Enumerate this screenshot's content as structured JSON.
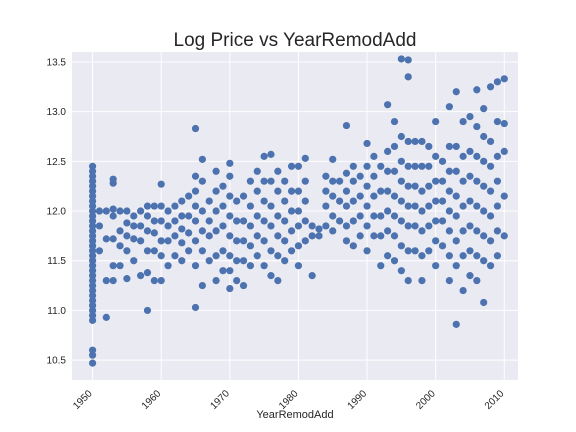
{
  "chart_data": {
    "type": "scatter",
    "title": "Log Price vs YearRemodAdd",
    "xlabel": "YearRemodAdd",
    "ylabel": "",
    "xlim": [
      1947,
      2012
    ],
    "ylim": [
      10.3,
      13.6
    ],
    "xticks": [
      1950,
      1960,
      1970,
      1980,
      1990,
      2000,
      2010
    ],
    "yticks": [
      10.5,
      11.0,
      11.5,
      12.0,
      12.5,
      13.0,
      13.5
    ],
    "grid": true,
    "legend": "none",
    "colors": {
      "point": "#4c72b0",
      "plot_bg": "#eaeaf2",
      "grid": "#ffffff"
    },
    "points": [
      [
        1950,
        10.47
      ],
      [
        1950,
        10.55
      ],
      [
        1950,
        10.6
      ],
      [
        1950,
        10.9
      ],
      [
        1950,
        10.95
      ],
      [
        1950,
        11.0
      ],
      [
        1950,
        11.05
      ],
      [
        1950,
        11.1
      ],
      [
        1950,
        11.15
      ],
      [
        1950,
        11.2
      ],
      [
        1950,
        11.25
      ],
      [
        1950,
        11.3
      ],
      [
        1950,
        11.35
      ],
      [
        1950,
        11.4
      ],
      [
        1950,
        11.45
      ],
      [
        1950,
        11.5
      ],
      [
        1950,
        11.55
      ],
      [
        1950,
        11.6
      ],
      [
        1950,
        11.65
      ],
      [
        1950,
        11.7
      ],
      [
        1950,
        11.75
      ],
      [
        1950,
        11.8
      ],
      [
        1950,
        11.85
      ],
      [
        1950,
        11.9
      ],
      [
        1950,
        11.95
      ],
      [
        1950,
        12.0
      ],
      [
        1950,
        12.05
      ],
      [
        1950,
        12.1
      ],
      [
        1950,
        12.15
      ],
      [
        1950,
        12.2
      ],
      [
        1950,
        12.25
      ],
      [
        1950,
        12.3
      ],
      [
        1950,
        12.35
      ],
      [
        1950,
        12.4
      ],
      [
        1950,
        12.45
      ],
      [
        1951,
        11.6
      ],
      [
        1951,
        11.85
      ],
      [
        1951,
        12.0
      ],
      [
        1952,
        10.93
      ],
      [
        1952,
        11.3
      ],
      [
        1952,
        11.72
      ],
      [
        1952,
        12.0
      ],
      [
        1953,
        11.3
      ],
      [
        1953,
        11.45
      ],
      [
        1953,
        11.72
      ],
      [
        1953,
        11.95
      ],
      [
        1953,
        12.02
      ],
      [
        1953,
        12.28
      ],
      [
        1953,
        12.32
      ],
      [
        1954,
        11.45
      ],
      [
        1954,
        11.65
      ],
      [
        1954,
        11.8
      ],
      [
        1954,
        12.0
      ],
      [
        1955,
        11.32
      ],
      [
        1955,
        11.6
      ],
      [
        1955,
        11.75
      ],
      [
        1955,
        11.88
      ],
      [
        1955,
        12.0
      ],
      [
        1956,
        11.5
      ],
      [
        1956,
        11.72
      ],
      [
        1956,
        11.85
      ],
      [
        1956,
        11.95
      ],
      [
        1957,
        11.35
      ],
      [
        1957,
        11.7
      ],
      [
        1957,
        11.85
      ],
      [
        1957,
        12.0
      ],
      [
        1958,
        11.0
      ],
      [
        1958,
        11.38
      ],
      [
        1958,
        11.6
      ],
      [
        1958,
        11.8
      ],
      [
        1958,
        11.95
      ],
      [
        1958,
        12.05
      ],
      [
        1959,
        11.3
      ],
      [
        1959,
        11.6
      ],
      [
        1959,
        11.78
      ],
      [
        1959,
        11.9
      ],
      [
        1959,
        12.05
      ],
      [
        1960,
        11.3
      ],
      [
        1960,
        11.55
      ],
      [
        1960,
        11.7
      ],
      [
        1960,
        11.9
      ],
      [
        1960,
        12.05
      ],
      [
        1960,
        12.27
      ],
      [
        1961,
        11.45
      ],
      [
        1961,
        11.7
      ],
      [
        1961,
        11.85
      ],
      [
        1961,
        12.0
      ],
      [
        1962,
        11.55
      ],
      [
        1962,
        11.75
      ],
      [
        1962,
        11.9
      ],
      [
        1962,
        12.05
      ],
      [
        1963,
        11.5
      ],
      [
        1963,
        11.68
      ],
      [
        1963,
        11.82
      ],
      [
        1963,
        11.95
      ],
      [
        1963,
        12.1
      ],
      [
        1964,
        11.6
      ],
      [
        1964,
        11.78
      ],
      [
        1964,
        11.95
      ],
      [
        1964,
        12.15
      ],
      [
        1965,
        11.03
      ],
      [
        1965,
        11.45
      ],
      [
        1965,
        11.7
      ],
      [
        1965,
        11.9
      ],
      [
        1965,
        12.05
      ],
      [
        1965,
        12.2
      ],
      [
        1965,
        12.35
      ],
      [
        1965,
        12.83
      ],
      [
        1966,
        11.25
      ],
      [
        1966,
        11.6
      ],
      [
        1966,
        11.8
      ],
      [
        1966,
        12.0
      ],
      [
        1966,
        12.3
      ],
      [
        1966,
        12.52
      ],
      [
        1967,
        11.5
      ],
      [
        1967,
        11.75
      ],
      [
        1967,
        11.9
      ],
      [
        1967,
        12.1
      ],
      [
        1968,
        11.3
      ],
      [
        1968,
        11.55
      ],
      [
        1968,
        11.8
      ],
      [
        1968,
        12.0
      ],
      [
        1968,
        12.2
      ],
      [
        1968,
        12.4
      ],
      [
        1969,
        11.4
      ],
      [
        1969,
        11.6
      ],
      [
        1969,
        11.85
      ],
      [
        1969,
        12.05
      ],
      [
        1969,
        12.25
      ],
      [
        1970,
        11.22
      ],
      [
        1970,
        11.4
      ],
      [
        1970,
        11.55
      ],
      [
        1970,
        11.75
      ],
      [
        1970,
        11.95
      ],
      [
        1970,
        12.15
      ],
      [
        1970,
        12.35
      ],
      [
        1970,
        12.48
      ],
      [
        1971,
        11.3
      ],
      [
        1971,
        11.5
      ],
      [
        1971,
        11.7
      ],
      [
        1971,
        11.9
      ],
      [
        1971,
        12.1
      ],
      [
        1972,
        11.25
      ],
      [
        1972,
        11.5
      ],
      [
        1972,
        11.7
      ],
      [
        1972,
        11.9
      ],
      [
        1972,
        12.15
      ],
      [
        1973,
        11.45
      ],
      [
        1973,
        11.65
      ],
      [
        1973,
        11.85
      ],
      [
        1973,
        12.05
      ],
      [
        1973,
        12.3
      ],
      [
        1974,
        11.55
      ],
      [
        1974,
        11.75
      ],
      [
        1974,
        11.95
      ],
      [
        1974,
        12.2
      ],
      [
        1974,
        12.4
      ],
      [
        1975,
        11.45
      ],
      [
        1975,
        11.7
      ],
      [
        1975,
        11.9
      ],
      [
        1975,
        12.1
      ],
      [
        1975,
        12.3
      ],
      [
        1975,
        12.55
      ],
      [
        1976,
        11.35
      ],
      [
        1976,
        11.6
      ],
      [
        1976,
        11.85
      ],
      [
        1976,
        12.05
      ],
      [
        1976,
        12.3
      ],
      [
        1976,
        12.57
      ],
      [
        1977,
        11.3
      ],
      [
        1977,
        11.55
      ],
      [
        1977,
        11.75
      ],
      [
        1977,
        11.95
      ],
      [
        1977,
        12.2
      ],
      [
        1977,
        12.4
      ],
      [
        1978,
        11.5
      ],
      [
        1978,
        11.7
      ],
      [
        1978,
        11.9
      ],
      [
        1978,
        12.1
      ],
      [
        1978,
        12.3
      ],
      [
        1979,
        11.6
      ],
      [
        1979,
        11.8
      ],
      [
        1979,
        12.0
      ],
      [
        1979,
        12.2
      ],
      [
        1979,
        12.45
      ],
      [
        1980,
        11.45
      ],
      [
        1980,
        11.65
      ],
      [
        1980,
        11.85
      ],
      [
        1980,
        12.0
      ],
      [
        1980,
        12.2
      ],
      [
        1980,
        12.45
      ],
      [
        1981,
        11.7
      ],
      [
        1981,
        11.9
      ],
      [
        1981,
        12.1
      ],
      [
        1981,
        12.3
      ],
      [
        1981,
        12.53
      ],
      [
        1982,
        11.35
      ],
      [
        1982,
        11.75
      ],
      [
        1982,
        11.85
      ],
      [
        1983,
        11.75
      ],
      [
        1983,
        11.82
      ],
      [
        1984,
        11.85
      ],
      [
        1984,
        12.05
      ],
      [
        1984,
        12.2
      ],
      [
        1984,
        12.35
      ],
      [
        1985,
        11.8
      ],
      [
        1985,
        11.95
      ],
      [
        1985,
        12.15
      ],
      [
        1985,
        12.3
      ],
      [
        1985,
        12.52
      ],
      [
        1986,
        11.9
      ],
      [
        1986,
        12.1
      ],
      [
        1986,
        12.3
      ],
      [
        1987,
        11.7
      ],
      [
        1987,
        11.85
      ],
      [
        1987,
        12.05
      ],
      [
        1987,
        12.2
      ],
      [
        1987,
        12.38
      ],
      [
        1987,
        12.86
      ],
      [
        1988,
        11.65
      ],
      [
        1988,
        11.9
      ],
      [
        1988,
        12.1
      ],
      [
        1988,
        12.3
      ],
      [
        1988,
        12.45
      ],
      [
        1989,
        11.75
      ],
      [
        1989,
        11.95
      ],
      [
        1989,
        12.15
      ],
      [
        1989,
        12.35
      ],
      [
        1990,
        11.6
      ],
      [
        1990,
        11.85
      ],
      [
        1990,
        12.05
      ],
      [
        1990,
        12.25
      ],
      [
        1990,
        12.45
      ],
      [
        1990,
        12.68
      ],
      [
        1991,
        11.75
      ],
      [
        1991,
        11.95
      ],
      [
        1991,
        12.15
      ],
      [
        1991,
        12.35
      ],
      [
        1991,
        12.55
      ],
      [
        1992,
        11.45
      ],
      [
        1992,
        11.75
      ],
      [
        1992,
        11.95
      ],
      [
        1992,
        12.2
      ],
      [
        1992,
        12.45
      ],
      [
        1993,
        11.55
      ],
      [
        1993,
        11.8
      ],
      [
        1993,
        12.0
      ],
      [
        1993,
        12.2
      ],
      [
        1993,
        12.4
      ],
      [
        1993,
        12.6
      ],
      [
        1993,
        13.07
      ],
      [
        1994,
        11.5
      ],
      [
        1994,
        11.75
      ],
      [
        1994,
        11.95
      ],
      [
        1994,
        12.15
      ],
      [
        1994,
        12.4
      ],
      [
        1994,
        12.65
      ],
      [
        1994,
        12.9
      ],
      [
        1995,
        11.4
      ],
      [
        1995,
        11.65
      ],
      [
        1995,
        11.9
      ],
      [
        1995,
        12.1
      ],
      [
        1995,
        12.3
      ],
      [
        1995,
        12.5
      ],
      [
        1995,
        12.75
      ],
      [
        1995,
        13.53
      ],
      [
        1996,
        11.3
      ],
      [
        1996,
        11.6
      ],
      [
        1996,
        11.85
      ],
      [
        1996,
        12.05
      ],
      [
        1996,
        12.25
      ],
      [
        1996,
        12.45
      ],
      [
        1996,
        12.7
      ],
      [
        1996,
        13.35
      ],
      [
        1996,
        13.52
      ],
      [
        1997,
        11.6
      ],
      [
        1997,
        11.85
      ],
      [
        1997,
        12.05
      ],
      [
        1997,
        12.25
      ],
      [
        1997,
        12.45
      ],
      [
        1997,
        12.7
      ],
      [
        1998,
        11.3
      ],
      [
        1998,
        11.55
      ],
      [
        1998,
        11.8
      ],
      [
        1998,
        12.0
      ],
      [
        1998,
        12.2
      ],
      [
        1998,
        12.45
      ],
      [
        1998,
        12.7
      ],
      [
        1999,
        11.6
      ],
      [
        1999,
        11.85
      ],
      [
        1999,
        12.05
      ],
      [
        1999,
        12.25
      ],
      [
        1999,
        12.45
      ],
      [
        1999,
        12.65
      ],
      [
        2000,
        11.45
      ],
      [
        2000,
        11.7
      ],
      [
        2000,
        11.9
      ],
      [
        2000,
        12.1
      ],
      [
        2000,
        12.3
      ],
      [
        2000,
        12.55
      ],
      [
        2000,
        12.9
      ],
      [
        2001,
        11.65
      ],
      [
        2001,
        11.9
      ],
      [
        2001,
        12.1
      ],
      [
        2001,
        12.3
      ],
      [
        2001,
        12.5
      ],
      [
        2002,
        11.3
      ],
      [
        2002,
        11.55
      ],
      [
        2002,
        11.8
      ],
      [
        2002,
        12.0
      ],
      [
        2002,
        12.2
      ],
      [
        2002,
        12.4
      ],
      [
        2002,
        12.65
      ],
      [
        2002,
        13.05
      ],
      [
        2003,
        10.86
      ],
      [
        2003,
        11.45
      ],
      [
        2003,
        11.7
      ],
      [
        2003,
        11.95
      ],
      [
        2003,
        12.15
      ],
      [
        2003,
        12.4
      ],
      [
        2003,
        12.65
      ],
      [
        2003,
        13.2
      ],
      [
        2004,
        11.2
      ],
      [
        2004,
        11.55
      ],
      [
        2004,
        11.8
      ],
      [
        2004,
        12.05
      ],
      [
        2004,
        12.3
      ],
      [
        2004,
        12.55
      ],
      [
        2004,
        12.9
      ],
      [
        2005,
        11.35
      ],
      [
        2005,
        11.6
      ],
      [
        2005,
        11.85
      ],
      [
        2005,
        12.1
      ],
      [
        2005,
        12.35
      ],
      [
        2005,
        12.6
      ],
      [
        2005,
        12.95
      ],
      [
        2006,
        11.3
      ],
      [
        2006,
        11.55
      ],
      [
        2006,
        11.8
      ],
      [
        2006,
        12.05
      ],
      [
        2006,
        12.3
      ],
      [
        2006,
        12.55
      ],
      [
        2006,
        12.85
      ],
      [
        2006,
        13.22
      ],
      [
        2007,
        11.08
      ],
      [
        2007,
        11.5
      ],
      [
        2007,
        11.75
      ],
      [
        2007,
        12.0
      ],
      [
        2007,
        12.25
      ],
      [
        2007,
        12.5
      ],
      [
        2007,
        12.75
      ],
      [
        2007,
        13.03
      ],
      [
        2008,
        11.45
      ],
      [
        2008,
        11.7
      ],
      [
        2008,
        11.95
      ],
      [
        2008,
        12.2
      ],
      [
        2008,
        12.45
      ],
      [
        2008,
        12.7
      ],
      [
        2008,
        13.25
      ],
      [
        2009,
        11.55
      ],
      [
        2009,
        11.8
      ],
      [
        2009,
        12.05
      ],
      [
        2009,
        12.3
      ],
      [
        2009,
        12.55
      ],
      [
        2009,
        12.9
      ],
      [
        2009,
        13.3
      ],
      [
        2010,
        11.75
      ],
      [
        2010,
        12.15
      ],
      [
        2010,
        12.6
      ],
      [
        2010,
        12.88
      ],
      [
        2010,
        13.33
      ]
    ]
  }
}
